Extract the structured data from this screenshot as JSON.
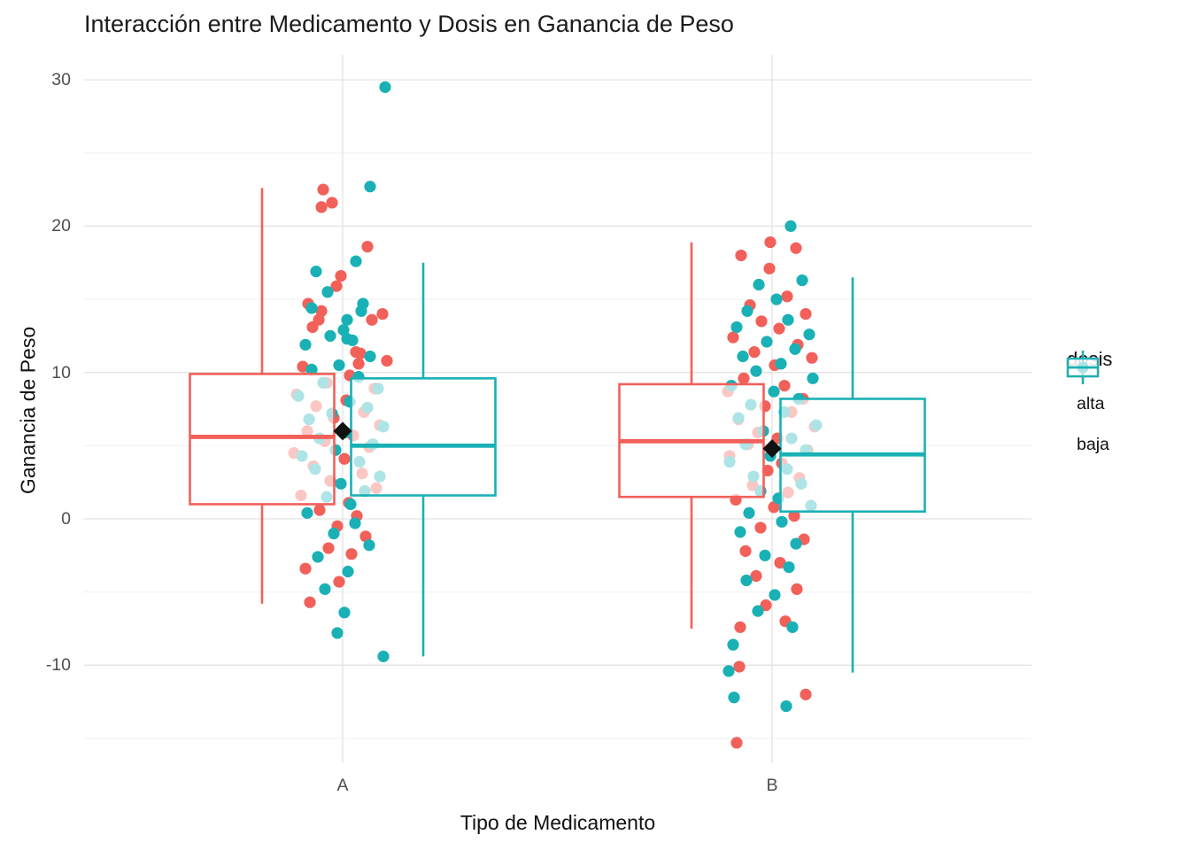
{
  "chart_data": {
    "type": "boxplot",
    "title": "Interacción entre Medicamento y Dosis en Ganancia de Peso",
    "xlabel": "Tipo de Medicamento",
    "ylabel": "Ganancia de Peso",
    "x_categories": [
      "A",
      "B"
    ],
    "y_major_ticks": [
      30,
      20,
      10,
      0,
      -10
    ],
    "y_minor_ticks": [
      25,
      15,
      5,
      -5,
      -15
    ],
    "ylim": [
      -16.7,
      31.7
    ],
    "grid_major_color": "#E3E3E3",
    "grid_minor_color": "#F0F0F0",
    "panel_background": "#FFFFFF",
    "box_fill": "rgba(255,255,255,0.65)",
    "mean_marker_color": "#111111",
    "legend": {
      "title": "dosis",
      "items": [
        {
          "label": "alta",
          "color": "#F2605A"
        },
        {
          "label": "baja",
          "color": "#19B1B5"
        }
      ]
    },
    "boxes": [
      {
        "medicamento": "A",
        "dosis": "alta",
        "min": -5.8,
        "q1": 1.0,
        "median": 5.6,
        "q3": 9.9,
        "max": 22.6
      },
      {
        "medicamento": "A",
        "dosis": "baja",
        "min": -9.4,
        "q1": 1.6,
        "median": 5.0,
        "q3": 9.6,
        "max": 17.5
      },
      {
        "medicamento": "B",
        "dosis": "alta",
        "min": -7.5,
        "q1": 1.5,
        "median": 5.3,
        "q3": 9.2,
        "max": 18.9
      },
      {
        "medicamento": "B",
        "dosis": "baja",
        "min": -10.5,
        "q1": 0.5,
        "median": 4.4,
        "q3": 8.2,
        "max": 16.5
      }
    ],
    "group_means": [
      {
        "medicamento": "A",
        "mean": 6.0
      },
      {
        "medicamento": "B",
        "mean": 4.8
      }
    ],
    "points": {
      "A_alta": [
        [
          -22,
          22.5
        ],
        [
          -12,
          21.6
        ],
        [
          -24,
          21.3
        ],
        [
          28,
          18.6
        ],
        [
          -2,
          16.6
        ],
        [
          -7,
          15.9
        ],
        [
          -39,
          14.7
        ],
        [
          -24,
          14.2
        ],
        [
          45,
          14.0
        ],
        [
          -27,
          13.6
        ],
        [
          33,
          13.6
        ],
        [
          -34,
          13.1
        ],
        [
          15,
          11.4
        ],
        [
          20,
          11.3
        ],
        [
          50,
          10.8
        ],
        [
          18,
          10.6
        ],
        [
          -45,
          10.4
        ],
        [
          8,
          9.8
        ],
        [
          -18,
          9.3
        ],
        [
          36,
          8.9
        ],
        [
          -52,
          8.5
        ],
        [
          4,
          8.1
        ],
        [
          -30,
          7.7
        ],
        [
          24,
          7.3
        ],
        [
          -10,
          6.9
        ],
        [
          42,
          6.4
        ],
        [
          -40,
          6.0
        ],
        [
          12,
          5.7
        ],
        [
          -20,
          5.3
        ],
        [
          30,
          4.9
        ],
        [
          -55,
          4.5
        ],
        [
          2,
          4.1
        ],
        [
          -33,
          3.6
        ],
        [
          22,
          3.1
        ],
        [
          -14,
          2.6
        ],
        [
          38,
          2.1
        ],
        [
          -47,
          1.6
        ],
        [
          7,
          1.1
        ],
        [
          -26,
          0.6
        ],
        [
          16,
          0.2
        ],
        [
          -6,
          -0.5
        ],
        [
          26,
          -1.2
        ],
        [
          -16,
          -2.0
        ],
        [
          10,
          -2.4
        ],
        [
          -42,
          -3.4
        ],
        [
          -4,
          -4.3
        ],
        [
          -37,
          -5.7
        ]
      ],
      "A_baja": [
        [
          48,
          29.5
        ],
        [
          31,
          22.7
        ],
        [
          15,
          17.6
        ],
        [
          -30,
          16.9
        ],
        [
          -17,
          15.5
        ],
        [
          23,
          14.7
        ],
        [
          -35,
          14.4
        ],
        [
          21,
          14.2
        ],
        [
          5,
          13.6
        ],
        [
          1,
          12.9
        ],
        [
          -14,
          12.5
        ],
        [
          5,
          12.3
        ],
        [
          11,
          12.2
        ],
        [
          -42,
          11.9
        ],
        [
          31,
          11.1
        ],
        [
          -4,
          10.5
        ],
        [
          -35,
          10.2
        ],
        [
          18,
          9.7
        ],
        [
          -22,
          9.3
        ],
        [
          40,
          8.9
        ],
        [
          -50,
          8.4
        ],
        [
          8,
          8.0
        ],
        [
          28,
          7.6
        ],
        [
          -12,
          7.2
        ],
        [
          -38,
          6.8
        ],
        [
          46,
          6.3
        ],
        [
          3,
          5.9
        ],
        [
          -26,
          5.5
        ],
        [
          34,
          5.1
        ],
        [
          -8,
          4.7
        ],
        [
          -46,
          4.3
        ],
        [
          19,
          3.9
        ],
        [
          -31,
          3.4
        ],
        [
          42,
          2.9
        ],
        [
          -2,
          2.4
        ],
        [
          25,
          1.9
        ],
        [
          -18,
          1.5
        ],
        [
          9,
          1.0
        ],
        [
          -40,
          0.4
        ],
        [
          14,
          -0.3
        ],
        [
          -10,
          -1.0
        ],
        [
          30,
          -1.8
        ],
        [
          -28,
          -2.6
        ],
        [
          6,
          -3.6
        ],
        [
          -20,
          -4.8
        ],
        [
          2,
          -6.4
        ],
        [
          -6,
          -7.8
        ],
        [
          46,
          -9.4
        ]
      ],
      "B_alta": [
        [
          -2,
          18.9
        ],
        [
          27,
          18.5
        ],
        [
          -35,
          18.0
        ],
        [
          -3,
          17.1
        ],
        [
          17,
          15.2
        ],
        [
          -25,
          14.6
        ],
        [
          38,
          14.0
        ],
        [
          -12,
          13.5
        ],
        [
          8,
          13.0
        ],
        [
          -44,
          12.4
        ],
        [
          29,
          11.9
        ],
        [
          -20,
          11.4
        ],
        [
          45,
          11.0
        ],
        [
          3,
          10.5
        ],
        [
          -32,
          9.6
        ],
        [
          14,
          9.1
        ],
        [
          -50,
          8.7
        ],
        [
          35,
          8.2
        ],
        [
          -8,
          7.7
        ],
        [
          22,
          7.3
        ],
        [
          -38,
          6.8
        ],
        [
          48,
          6.3
        ],
        [
          -16,
          5.9
        ],
        [
          6,
          5.5
        ],
        [
          -27,
          5.1
        ],
        [
          40,
          4.7
        ],
        [
          -48,
          4.3
        ],
        [
          11,
          3.8
        ],
        [
          -5,
          3.3
        ],
        [
          31,
          2.8
        ],
        [
          -22,
          2.3
        ],
        [
          18,
          1.8
        ],
        [
          -41,
          1.3
        ],
        [
          2,
          0.8
        ],
        [
          25,
          0.2
        ],
        [
          -13,
          -0.6
        ],
        [
          36,
          -1.4
        ],
        [
          -30,
          -2.2
        ],
        [
          9,
          -3.0
        ],
        [
          -18,
          -3.9
        ],
        [
          28,
          -4.8
        ],
        [
          -7,
          -5.9
        ],
        [
          15,
          -7.0
        ],
        [
          -36,
          -7.4
        ],
        [
          -37,
          -10.1
        ],
        [
          38,
          -12.0
        ],
        [
          -40,
          -15.3
        ]
      ],
      "B_baja": [
        [
          21,
          20.0
        ],
        [
          34,
          16.3
        ],
        [
          -15,
          16.0
        ],
        [
          5,
          15.0
        ],
        [
          -28,
          14.2
        ],
        [
          18,
          13.6
        ],
        [
          -40,
          13.1
        ],
        [
          42,
          12.6
        ],
        [
          -6,
          12.1
        ],
        [
          26,
          11.6
        ],
        [
          -33,
          11.1
        ],
        [
          10,
          10.6
        ],
        [
          -18,
          10.1
        ],
        [
          46,
          9.6
        ],
        [
          -46,
          9.1
        ],
        [
          2,
          8.7
        ],
        [
          30,
          8.2
        ],
        [
          -24,
          7.8
        ],
        [
          14,
          7.3
        ],
        [
          -38,
          6.9
        ],
        [
          50,
          6.4
        ],
        [
          -10,
          6.0
        ],
        [
          22,
          5.5
        ],
        [
          -30,
          5.1
        ],
        [
          38,
          4.7
        ],
        [
          -2,
          4.3
        ],
        [
          -48,
          3.9
        ],
        [
          17,
          3.4
        ],
        [
          -21,
          2.9
        ],
        [
          33,
          2.4
        ],
        [
          -13,
          1.9
        ],
        [
          7,
          1.4
        ],
        [
          44,
          0.9
        ],
        [
          -26,
          0.4
        ],
        [
          11,
          -0.2
        ],
        [
          -36,
          -0.9
        ],
        [
          27,
          -1.7
        ],
        [
          -8,
          -2.5
        ],
        [
          19,
          -3.3
        ],
        [
          -29,
          -4.2
        ],
        [
          3,
          -5.2
        ],
        [
          -16,
          -6.3
        ],
        [
          23,
          -7.4
        ],
        [
          -44,
          -8.6
        ],
        [
          -49,
          -10.4
        ],
        [
          16,
          -12.8
        ],
        [
          -43,
          -12.2
        ]
      ]
    }
  }
}
